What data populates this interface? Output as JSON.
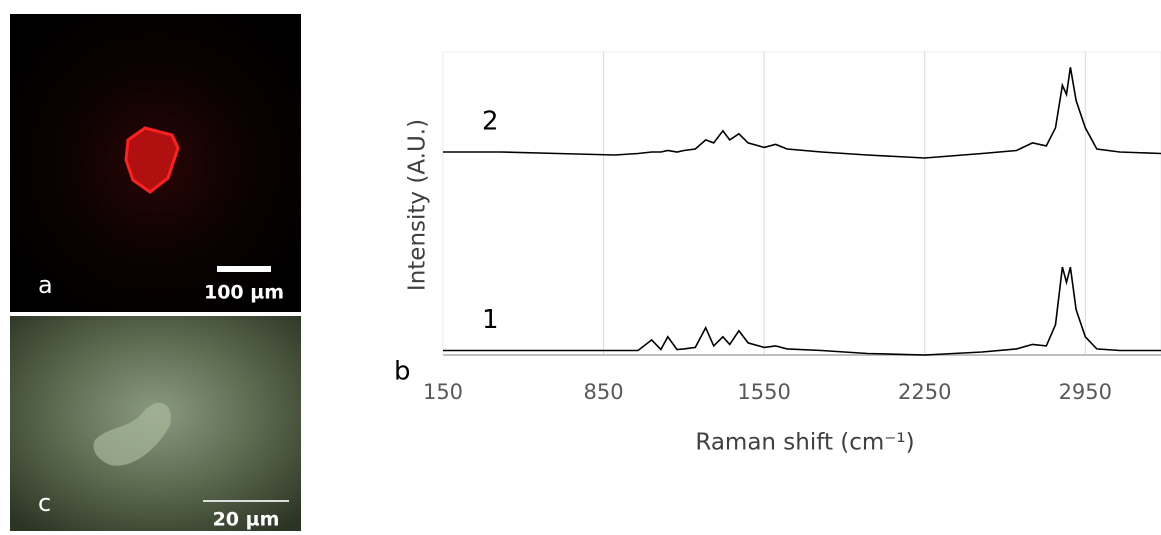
{
  "panels": {
    "a": {
      "label": "a",
      "scale_bar": "100 µm"
    },
    "c": {
      "label": "c",
      "scale_bar": "20 µm"
    }
  },
  "chart_data": {
    "type": "line",
    "panel_label": "b",
    "x_label": "Raman shift (cm⁻¹)",
    "y_label": "Intensity (A.U.)",
    "x": [
      150,
      400,
      650,
      900,
      1000,
      1060,
      1100,
      1130,
      1170,
      1200,
      1250,
      1295,
      1330,
      1370,
      1400,
      1440,
      1480,
      1550,
      1600,
      1650,
      1800,
      2000,
      2250,
      2500,
      2650,
      2720,
      2780,
      2820,
      2850,
      2868,
      2885,
      2910,
      2950,
      3000,
      3100,
      3280
    ],
    "series": [
      {
        "name": "1",
        "color": "#000000",
        "values": [
          1.5,
          1.5,
          1.5,
          1.5,
          1.5,
          5,
          1.8,
          6,
          1.8,
          2,
          2.5,
          9,
          3,
          6,
          3.5,
          8,
          4,
          2.5,
          3,
          2,
          1.5,
          0.5,
          0,
          1,
          2,
          3.5,
          3,
          10,
          29,
          24,
          29,
          15,
          6,
          2,
          1.5,
          1.5
        ]
      },
      {
        "name": "2",
        "color": "#000000",
        "values": [
          67,
          67,
          66.5,
          66,
          66.5,
          67,
          67,
          67.5,
          67,
          67.5,
          68,
          71,
          70,
          74,
          71,
          73,
          70,
          68.5,
          69.5,
          68,
          67,
          66,
          65,
          66.5,
          67.5,
          70,
          69,
          75,
          89,
          86,
          95,
          84,
          75,
          68,
          67,
          66.5
        ]
      }
    ],
    "xlim": [
      150,
      3280
    ],
    "ylim": [
      0,
      100
    ],
    "xticks": [
      150,
      850,
      1550,
      2250,
      2950
    ],
    "grid": true
  }
}
